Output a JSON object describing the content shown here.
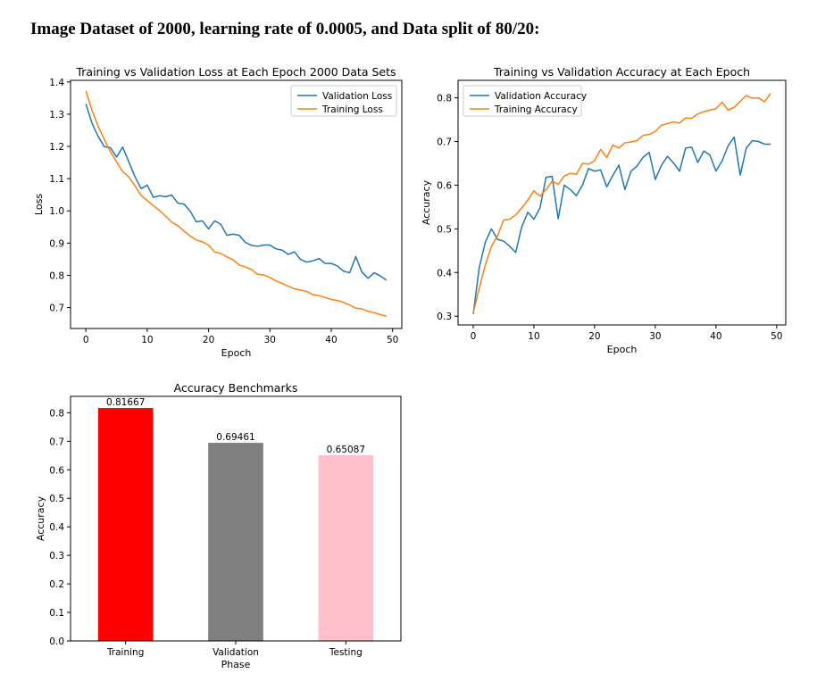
{
  "heading": "Image Dataset of 2000, learning rate of 0.0005, and Data split of 80/20:",
  "colors": {
    "validation": "#1f77b4",
    "training": "#ff7f0e"
  },
  "chart_data": [
    {
      "type": "line",
      "title": "Training vs Validation Loss at Each Epoch 2000 Data Sets",
      "xlabel": "Epoch",
      "ylabel": "Loss",
      "xlim": [
        -2.5,
        51.5
      ],
      "ylim": [
        0.635,
        1.405
      ],
      "xticks": [
        0,
        10,
        20,
        30,
        40,
        50
      ],
      "yticks": [
        0.7,
        0.8,
        0.9,
        1.0,
        1.1,
        1.2,
        1.3,
        1.4
      ],
      "tick_decimals": 1,
      "legend_position": "upper right",
      "series": [
        {
          "name": "Validation Loss",
          "color": "#1f77b4",
          "values": [
            1.332,
            1.272,
            1.231,
            1.199,
            1.196,
            1.167,
            1.198,
            1.152,
            1.106,
            1.069,
            1.08,
            1.042,
            1.047,
            1.044,
            1.049,
            1.024,
            1.021,
            0.999,
            0.966,
            0.969,
            0.944,
            0.969,
            0.958,
            0.924,
            0.928,
            0.924,
            0.902,
            0.893,
            0.89,
            0.894,
            0.894,
            0.882,
            0.878,
            0.865,
            0.873,
            0.849,
            0.841,
            0.845,
            0.852,
            0.837,
            0.837,
            0.829,
            0.813,
            0.808,
            0.858,
            0.81,
            0.791,
            0.808,
            0.798,
            0.785
          ]
        },
        {
          "name": "Training Loss",
          "color": "#ff7f0e",
          "values": [
            1.372,
            1.312,
            1.262,
            1.222,
            1.183,
            1.152,
            1.122,
            1.105,
            1.078,
            1.048,
            1.032,
            1.016,
            1.001,
            0.984,
            0.965,
            0.954,
            0.937,
            0.922,
            0.91,
            0.904,
            0.894,
            0.872,
            0.868,
            0.857,
            0.848,
            0.832,
            0.826,
            0.818,
            0.803,
            0.801,
            0.793,
            0.783,
            0.775,
            0.766,
            0.758,
            0.754,
            0.75,
            0.74,
            0.737,
            0.731,
            0.725,
            0.722,
            0.716,
            0.708,
            0.698,
            0.696,
            0.688,
            0.684,
            0.678,
            0.673
          ]
        }
      ]
    },
    {
      "type": "line",
      "title": "Training vs Validation Accuracy at Each Epoch",
      "xlabel": "Epoch",
      "ylabel": "Accuracy",
      "xlim": [
        -2.5,
        51.5
      ],
      "ylim": [
        0.28,
        0.84
      ],
      "xticks": [
        0,
        10,
        20,
        30,
        40,
        50
      ],
      "yticks": [
        0.3,
        0.4,
        0.5,
        0.6,
        0.7,
        0.8
      ],
      "tick_decimals": 1,
      "legend_position": "upper left",
      "series": [
        {
          "name": "Validation Accuracy",
          "color": "#1f77b4",
          "values": [
            0.305,
            0.412,
            0.47,
            0.5,
            0.476,
            0.472,
            0.46,
            0.446,
            0.505,
            0.538,
            0.522,
            0.548,
            0.618,
            0.62,
            0.523,
            0.6,
            0.59,
            0.576,
            0.6,
            0.638,
            0.632,
            0.635,
            0.596,
            0.622,
            0.646,
            0.59,
            0.632,
            0.644,
            0.664,
            0.675,
            0.613,
            0.645,
            0.666,
            0.651,
            0.632,
            0.685,
            0.687,
            0.652,
            0.678,
            0.669,
            0.632,
            0.655,
            0.69,
            0.71,
            0.623,
            0.685,
            0.702,
            0.7,
            0.694,
            0.694
          ]
        },
        {
          "name": "Training Accuracy",
          "color": "#ff7f0e",
          "values": [
            0.308,
            0.364,
            0.418,
            0.46,
            0.484,
            0.52,
            0.522,
            0.532,
            0.548,
            0.566,
            0.587,
            0.575,
            0.59,
            0.609,
            0.602,
            0.621,
            0.627,
            0.625,
            0.65,
            0.648,
            0.656,
            0.682,
            0.663,
            0.692,
            0.685,
            0.697,
            0.699,
            0.702,
            0.714,
            0.716,
            0.723,
            0.737,
            0.741,
            0.745,
            0.742,
            0.754,
            0.753,
            0.763,
            0.768,
            0.772,
            0.775,
            0.79,
            0.772,
            0.778,
            0.792,
            0.805,
            0.799,
            0.8,
            0.791,
            0.81
          ]
        }
      ]
    },
    {
      "type": "bar",
      "title": "Accuracy Benchmarks",
      "xlabel": "Phase",
      "ylabel": "Accuracy",
      "ylim": [
        0.0,
        0.8575
      ],
      "yticks": [
        0.0,
        0.1,
        0.2,
        0.3,
        0.4,
        0.5,
        0.6,
        0.7,
        0.8
      ],
      "tick_decimals": 1,
      "categories": [
        "Training",
        "Validation",
        "Testing"
      ],
      "values": [
        0.81667,
        0.69461,
        0.65087
      ],
      "data_labels": [
        "0.81667",
        "0.69461",
        "0.65087"
      ],
      "colors": [
        "#ff0000",
        "#808080",
        "#ffc0cb"
      ]
    }
  ]
}
